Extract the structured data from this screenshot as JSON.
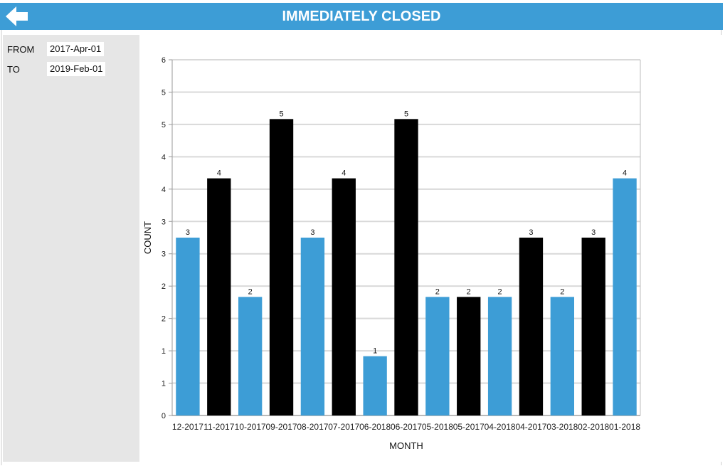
{
  "header": {
    "title": "IMMEDIATELY CLOSED",
    "back_icon": "arrow-left-icon",
    "color": "#3d9dd6"
  },
  "filters": {
    "from_label": "FROM",
    "from_value": "2017-Apr-01",
    "to_label": "TO",
    "to_value": "2019-Feb-01"
  },
  "chart_data": {
    "type": "bar",
    "title": "",
    "xlabel": "MONTH",
    "ylabel": "COUNT",
    "ylim": [
      0,
      6
    ],
    "y_tick_labels": [
      "0",
      "1",
      "1",
      "2",
      "2",
      "3",
      "3",
      "4",
      "4",
      "5",
      "5",
      "6"
    ],
    "grid": true,
    "categories": [
      "12-2017",
      "11-2017",
      "10-2017",
      "09-2017",
      "08-2017",
      "07-2017",
      "06-2018",
      "06-2017",
      "05-2018",
      "05-2017",
      "04-2018",
      "04-2017",
      "03-2018",
      "02-2018",
      "01-2018"
    ],
    "values": [
      3,
      4,
      2,
      5,
      3,
      4,
      1,
      5,
      2,
      2,
      2,
      3,
      2,
      3,
      4
    ],
    "bar_colors": [
      "#3d9dd6",
      "#000000",
      "#3d9dd6",
      "#000000",
      "#3d9dd6",
      "#000000",
      "#3d9dd6",
      "#000000",
      "#3d9dd6",
      "#000000",
      "#3d9dd6",
      "#000000",
      "#3d9dd6",
      "#000000",
      "#3d9dd6"
    ]
  }
}
